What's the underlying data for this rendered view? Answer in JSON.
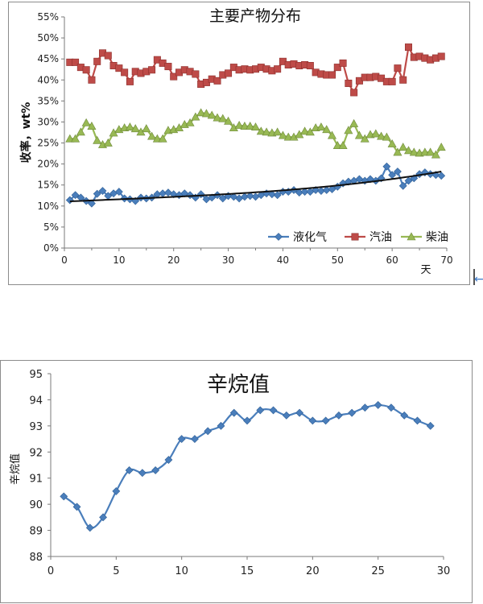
{
  "chart_data": [
    {
      "type": "line",
      "title": "主要产物分布",
      "xlabel": "天",
      "ylabel": "收率，wt%",
      "xlim": [
        0,
        70
      ],
      "ylim": [
        0,
        55
      ],
      "xticks": [
        0,
        10,
        20,
        30,
        40,
        50,
        60,
        70
      ],
      "yticks": [
        "0%",
        "5%",
        "10%",
        "15%",
        "20%",
        "25%",
        "30%",
        "35%",
        "40%",
        "45%",
        "50%",
        "55%"
      ],
      "grid": false,
      "legend": "bottom-right",
      "series": [
        {
          "name": "液化气",
          "color": "#4a7ebb",
          "marker": "diamond",
          "values": [
            11.4,
            12.6,
            12.0,
            11.2,
            10.6,
            12.9,
            13.6,
            12.4,
            13.0,
            13.4,
            11.8,
            11.6,
            11.2,
            12.0,
            11.8,
            12.0,
            12.8,
            13.0,
            13.2,
            12.8,
            12.6,
            13.0,
            12.6,
            12.0,
            12.8,
            11.6,
            12.0,
            12.6,
            11.8,
            12.4,
            12.2,
            11.8,
            12.2,
            12.4,
            12.2,
            12.6,
            13.0,
            12.8,
            12.6,
            13.4,
            13.4,
            13.8,
            13.2,
            13.4,
            13.4,
            13.8,
            13.6,
            13.8,
            14.0,
            14.6,
            15.4,
            15.8,
            16.0,
            16.4,
            16.0,
            16.4,
            16.0,
            16.6,
            19.4,
            17.4,
            18.2,
            14.8,
            16.0,
            16.6,
            17.6,
            18.0,
            17.6,
            17.4,
            17.2
          ]
        },
        {
          "name": "汽油",
          "color": "#be4b48",
          "marker": "square",
          "values": [
            44.2,
            44.2,
            43.0,
            42.4,
            40.0,
            44.4,
            46.4,
            45.8,
            43.4,
            42.8,
            41.8,
            39.6,
            42.0,
            41.6,
            42.0,
            42.4,
            44.8,
            44.0,
            43.2,
            40.8,
            41.8,
            42.4,
            42.0,
            41.4,
            39.0,
            39.4,
            40.2,
            39.8,
            41.2,
            41.6,
            43.0,
            42.4,
            42.6,
            42.4,
            42.6,
            43.0,
            42.6,
            42.2,
            42.6,
            44.4,
            43.6,
            43.8,
            43.4,
            43.6,
            43.4,
            41.8,
            41.4,
            41.2,
            41.2,
            43.0,
            44.0,
            39.2,
            37.0,
            39.8,
            40.6,
            40.6,
            40.8,
            40.4,
            39.6,
            39.6,
            42.8,
            40.0,
            47.8,
            45.4,
            45.6,
            45.2,
            44.8,
            45.2,
            45.6
          ]
        },
        {
          "name": "柴油",
          "color": "#98b954",
          "marker": "triangle",
          "values": [
            26.0,
            26.0,
            27.6,
            29.8,
            29.0,
            25.6,
            24.6,
            25.0,
            27.4,
            28.2,
            28.6,
            28.8,
            28.4,
            27.6,
            28.4,
            26.6,
            26.0,
            26.0,
            28.0,
            28.2,
            28.6,
            29.4,
            29.8,
            31.2,
            32.2,
            32.0,
            31.6,
            31.0,
            30.8,
            30.2,
            28.6,
            29.2,
            29.0,
            29.0,
            28.8,
            27.8,
            27.6,
            27.4,
            27.6,
            26.8,
            26.4,
            26.4,
            27.0,
            27.8,
            27.6,
            28.6,
            28.8,
            28.2,
            26.8,
            24.4,
            24.4,
            28.0,
            29.6,
            26.8,
            26.0,
            27.0,
            27.2,
            26.6,
            26.4,
            24.8,
            22.8,
            24.0,
            23.2,
            22.8,
            22.6,
            22.8,
            22.8,
            22.2,
            24.0
          ]
        }
      ],
      "trendline": {
        "of": "液化气",
        "color": "#111111",
        "x_start": 1,
        "x_end": 69
      }
    },
    {
      "type": "line",
      "title": "辛烷值",
      "xlabel": "",
      "ylabel": "辛烷值",
      "xlim": [
        0,
        30
      ],
      "ylim": [
        88,
        95
      ],
      "xticks": [
        0,
        5,
        10,
        15,
        20,
        25,
        30
      ],
      "yticks": [
        "88",
        "89",
        "90",
        "91",
        "92",
        "93",
        "94",
        "95"
      ],
      "grid": false,
      "legend": "none",
      "series": [
        {
          "color": "#4a7ebb",
          "marker": "diamond",
          "x": [
            1,
            2,
            3,
            4,
            5,
            6,
            7,
            8,
            9,
            10,
            11,
            12,
            13,
            14,
            15,
            16,
            17,
            18,
            19,
            20,
            21,
            22,
            23,
            24,
            25,
            26,
            27,
            28,
            29
          ],
          "values": [
            90.3,
            89.9,
            89.1,
            89.5,
            90.5,
            91.3,
            91.2,
            91.3,
            91.7,
            92.5,
            92.5,
            92.8,
            93.0,
            93.5,
            93.2,
            93.6,
            93.6,
            93.4,
            93.5,
            93.2,
            93.2,
            93.4,
            93.5,
            93.7,
            93.8,
            93.7,
            93.4,
            93.2,
            93.0
          ]
        }
      ]
    }
  ]
}
